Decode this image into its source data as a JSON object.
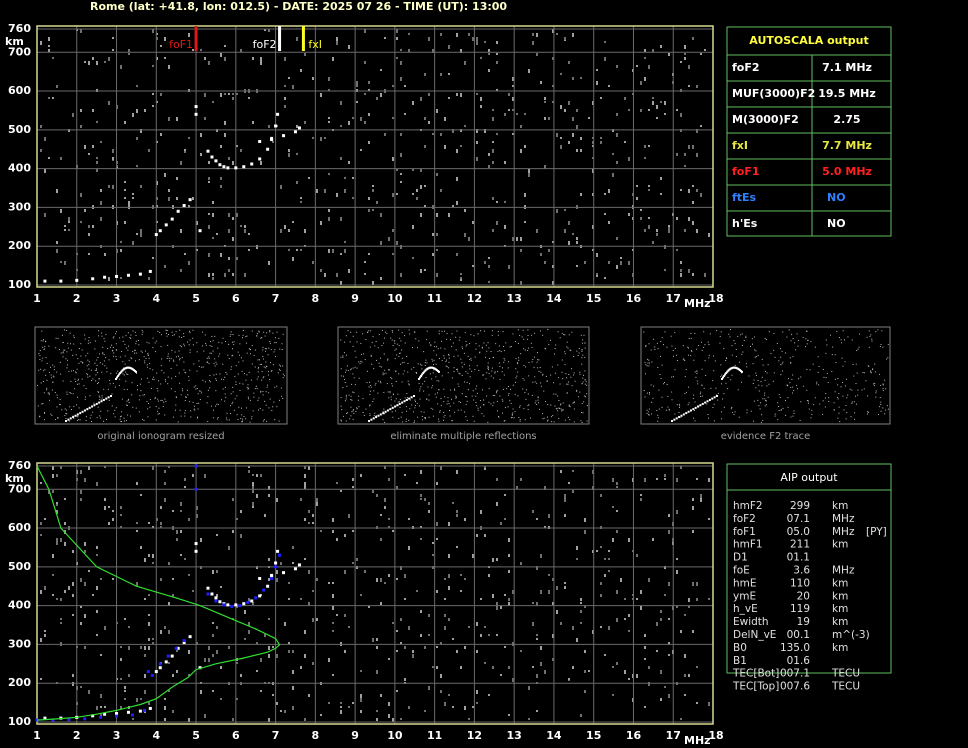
{
  "header": {
    "title": "Rome (lat: +41.8, lon: 012.5) - DATE: 2025 07 26 - TIME (UT): 13:00"
  },
  "chart_data": [
    {
      "type": "scatter",
      "xlim": [
        1,
        18
      ],
      "ylim": [
        100,
        760
      ],
      "xticks": [
        1,
        2,
        3,
        4,
        5,
        6,
        7,
        8,
        9,
        10,
        11,
        12,
        13,
        14,
        15,
        16,
        17,
        18
      ],
      "yticks": [
        100,
        200,
        300,
        400,
        500,
        600,
        700,
        760
      ],
      "x_label": "MHz",
      "y_label": "km",
      "grid": true,
      "axis_color": "#d8d890",
      "markers": [
        {
          "label": "foF1",
          "value": 5.0,
          "color": "#e01818"
        },
        {
          "label": "foF2",
          "value": 7.1,
          "color": "#ffffff"
        },
        {
          "label": "fxI",
          "value": 7.7,
          "color": "#ffff20"
        }
      ],
      "series": [
        {
          "color": "#ffffff",
          "x": [
            1.2,
            1.6,
            2.0,
            2.4,
            2.7,
            3.0,
            3.3,
            3.6,
            3.85,
            4.0,
            4.1,
            4.25,
            4.4,
            4.55,
            4.7,
            4.85,
            5.1,
            5.3,
            5.4,
            5.5,
            5.6,
            5.7,
            5.8,
            6.0,
            6.2,
            6.4,
            6.6,
            6.8,
            6.9,
            7.0,
            7.05,
            6.6,
            6.9,
            7.2,
            7.5,
            7.6,
            5.0,
            5.0
          ],
          "values": [
            110,
            110,
            112,
            116,
            120,
            122,
            125,
            128,
            135,
            230,
            240,
            255,
            270,
            290,
            305,
            320,
            240,
            445,
            430,
            420,
            410,
            405,
            402,
            402,
            405,
            412,
            425,
            450,
            475,
            510,
            540,
            470,
            478,
            485,
            495,
            505,
            560,
            540
          ]
        }
      ]
    },
    {
      "type": "scatter",
      "xlim": [
        1,
        18
      ],
      "ylim": [
        100,
        760
      ],
      "xticks": [
        1,
        2,
        3,
        4,
        5,
        6,
        7,
        8,
        9,
        10,
        11,
        12,
        13,
        14,
        15,
        16,
        17,
        18
      ],
      "yticks": [
        100,
        200,
        300,
        400,
        500,
        600,
        700,
        760
      ],
      "x_label": "MHz",
      "y_label": "km",
      "grid": true,
      "axis_color": "#d8d890",
      "series": [
        {
          "color": "#ffffff",
          "x": [
            1.2,
            1.6,
            2.0,
            2.4,
            2.7,
            3.0,
            3.3,
            3.6,
            3.85,
            4.0,
            4.1,
            4.25,
            4.4,
            4.55,
            4.7,
            4.85,
            5.1,
            5.3,
            5.4,
            5.5,
            5.6,
            5.7,
            5.8,
            6.0,
            6.2,
            6.4,
            6.6,
            6.8,
            6.9,
            7.0,
            7.05,
            6.6,
            6.9,
            7.2,
            7.5,
            7.6,
            5.0,
            5.0
          ],
          "values": [
            110,
            110,
            112,
            116,
            120,
            122,
            125,
            128,
            135,
            230,
            240,
            255,
            270,
            290,
            305,
            320,
            240,
            445,
            430,
            420,
            410,
            405,
            402,
            402,
            405,
            412,
            425,
            450,
            475,
            510,
            540,
            470,
            478,
            485,
            495,
            505,
            560,
            540
          ]
        },
        {
          "color": "#2020ff",
          "x": [
            1.0,
            1.4,
            1.8,
            2.2,
            2.6,
            3.0,
            3.4,
            3.7,
            3.8,
            3.9,
            4.1,
            4.3,
            4.5,
            4.7,
            5.3,
            5.5,
            5.7,
            5.9,
            6.1,
            6.3,
            6.5,
            6.7,
            6.9,
            7.0,
            7.1,
            5.0,
            5.0
          ],
          "values": [
            105,
            105,
            106,
            108,
            112,
            115,
            118,
            130,
            230,
            220,
            250,
            270,
            290,
            310,
            430,
            412,
            402,
            398,
            400,
            408,
            420,
            440,
            470,
            500,
            530,
            700,
            760
          ]
        },
        {
          "color": "#30e030",
          "mode": "line",
          "x": [
            1.0,
            1.3,
            1.6,
            2.5,
            3.5,
            4.5,
            5.1,
            5.8,
            6.5,
            7.0,
            7.1,
            7.0,
            6.8,
            6.2,
            5.5,
            5.0,
            4.8,
            4.4,
            4.0,
            3.6,
            3.0,
            2.5,
            2.0,
            1.5,
            1.0
          ],
          "values": [
            760,
            700,
            600,
            500,
            450,
            420,
            400,
            370,
            340,
            315,
            299,
            290,
            280,
            265,
            250,
            235,
            215,
            190,
            160,
            145,
            130,
            120,
            112,
            108,
            105
          ]
        }
      ]
    }
  ],
  "autoscala": {
    "title": "AUTOSCALA output",
    "rows": [
      {
        "label": "foF2",
        "value": "7.1 MHz",
        "color": "#ffffff"
      },
      {
        "label": "MUF(3000)F2",
        "value": "19.5 MHz",
        "color": "#ffffff"
      },
      {
        "label": "M(3000)F2",
        "value": "2.75",
        "color": "#ffffff"
      },
      {
        "label": "fxI",
        "value": "7.7 MHz",
        "color": "#e8e840"
      },
      {
        "label": "foF1",
        "value": "5.0 MHz",
        "color": "#ff2020"
      },
      {
        "label": "ftEs",
        "value": "NO",
        "color": "#3080ff"
      },
      {
        "label": "h'Es",
        "value": "NO",
        "color": "#ffffff"
      }
    ]
  },
  "thumbnails": [
    {
      "caption": "original ionogram resized"
    },
    {
      "caption": "eliminate multiple reflections"
    },
    {
      "caption": "evidence F2 trace"
    }
  ],
  "aip": {
    "title": "AIP output",
    "rows": [
      [
        "hmF2",
        "299",
        "km"
      ],
      [
        "foF2",
        "07.1",
        "MHz"
      ],
      [
        "foF1",
        "05.0",
        "MHz",
        "[PY]"
      ],
      [
        "hmF1",
        "211",
        "km"
      ],
      [
        "D1",
        "01.1"
      ],
      [
        "foE",
        "3.6",
        "MHz"
      ],
      [
        "hmE",
        "110",
        "km"
      ],
      [
        "ymE",
        "20",
        "km"
      ],
      [
        "h_vE",
        "119",
        "km"
      ],
      [
        "Ewidth",
        "19",
        "km"
      ],
      [
        "DelN_vE",
        "00.1",
        "m^(-3)"
      ],
      [
        "B0",
        "135.0",
        "km"
      ],
      [
        "B1",
        "01.6"
      ],
      [
        "TEC[Bot]",
        "007.1",
        "TECU"
      ],
      [
        "TEC[Top]",
        "007.6",
        "TECU"
      ]
    ]
  }
}
